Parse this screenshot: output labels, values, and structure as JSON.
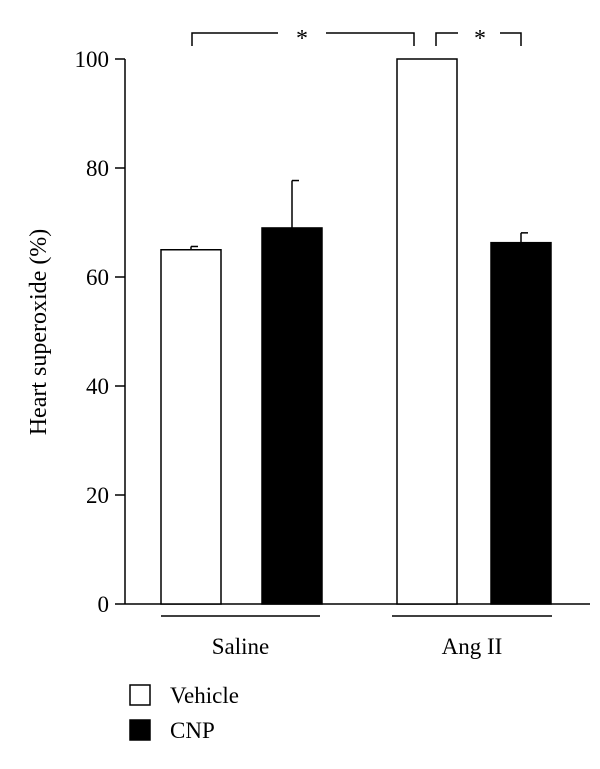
{
  "chart_data": {
    "type": "bar",
    "ylabel": "Heart superoxide (%)",
    "ylim": [
      0,
      100
    ],
    "yticks": [
      0,
      20,
      40,
      60,
      80,
      100
    ],
    "categories": [
      "Saline",
      "Ang II"
    ],
    "series": [
      {
        "name": "Vehicle",
        "values": [
          65,
          100
        ],
        "errors": [
          0.6,
          0
        ],
        "color": "#ffffff"
      },
      {
        "name": "CNP",
        "values": [
          69,
          66.3
        ],
        "errors": [
          8.7,
          1.8
        ],
        "color": "#000000"
      }
    ],
    "significance": [
      {
        "label": "*",
        "from": "Saline Vehicle",
        "to": "Ang II Vehicle"
      },
      {
        "label": "*",
        "from": "Ang II Vehicle",
        "to": "Ang II CNP"
      }
    ],
    "legend_position": "bottom-left",
    "grid": false
  }
}
